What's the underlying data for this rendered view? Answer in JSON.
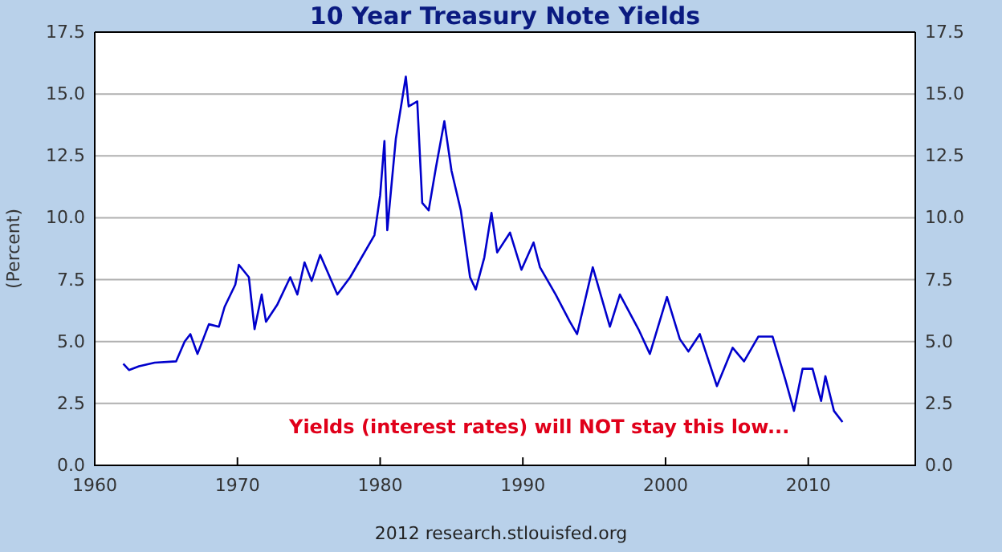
{
  "chart_data": {
    "type": "line",
    "title": "10 Year Treasury Note Yields",
    "ylabel": "(Percent)",
    "x": [
      1962.0,
      1962.4,
      1963.1,
      1964.2,
      1965.7,
      1966.3,
      1966.7,
      1967.2,
      1968.0,
      1968.7,
      1969.1,
      1969.85,
      1970.1,
      1970.8,
      1971.2,
      1971.7,
      1972.0,
      1972.8,
      1973.7,
      1974.2,
      1974.7,
      1975.2,
      1975.8,
      1977.0,
      1977.9,
      1979.6,
      1980.0,
      1980.3,
      1980.5,
      1981.1,
      1981.8,
      1982.0,
      1982.6,
      1982.95,
      1983.4,
      1983.9,
      1984.5,
      1985.0,
      1985.65,
      1986.3,
      1986.7,
      1987.3,
      1987.8,
      1988.2,
      1989.1,
      1989.9,
      1990.75,
      1991.2,
      1992.3,
      1993.3,
      1993.8,
      1994.9,
      1996.1,
      1996.8,
      1998.1,
      1998.9,
      2000.1,
      2001.0,
      2001.6,
      2002.4,
      2003.6,
      2004.7,
      2005.5,
      2006.5,
      2007.5,
      2008.4,
      2009.0,
      2009.6,
      2010.3,
      2010.9,
      2011.2,
      2011.8,
      2012.4
    ],
    "series": [
      {
        "color": "#0000cc",
        "values": [
          4.1,
          3.85,
          4.0,
          4.15,
          4.2,
          5.0,
          5.3,
          4.5,
          5.7,
          5.6,
          6.4,
          7.3,
          8.1,
          7.6,
          5.5,
          6.9,
          5.8,
          6.5,
          7.6,
          6.9,
          8.2,
          7.45,
          8.5,
          6.9,
          7.6,
          9.3,
          10.9,
          13.1,
          9.5,
          13.2,
          15.7,
          14.5,
          14.7,
          10.6,
          10.3,
          12.0,
          13.9,
          11.9,
          10.3,
          7.6,
          7.1,
          8.4,
          10.2,
          8.6,
          9.4,
          7.9,
          9.0,
          8.0,
          6.9,
          5.8,
          5.3,
          8.0,
          5.6,
          6.9,
          5.5,
          4.5,
          6.8,
          5.1,
          4.6,
          5.3,
          3.2,
          4.75,
          4.2,
          5.2,
          5.2,
          3.45,
          2.2,
          3.9,
          3.9,
          2.6,
          3.6,
          2.2,
          1.75
        ]
      }
    ],
    "xlim": [
      1960,
      2017.5
    ],
    "xticks": [
      1960,
      1970,
      1980,
      1990,
      2000,
      2010
    ],
    "ylim": [
      0,
      17.5
    ],
    "yticks": [
      {
        "value": 0,
        "label": "0.0"
      },
      {
        "value": 2.5,
        "label": "2.5"
      },
      {
        "value": 5,
        "label": "5.0"
      },
      {
        "value": 7.5,
        "label": "7.5"
      },
      {
        "value": 10,
        "label": "10.0"
      },
      {
        "value": 12.5,
        "label": "12.5"
      },
      {
        "value": 15,
        "label": "15.0"
      },
      {
        "value": 17.5,
        "label": "17.5"
      }
    ],
    "y2lim": [
      0,
      17.5
    ],
    "y2ticks": [
      {
        "value": 0,
        "label": "0.0"
      },
      {
        "value": 2.5,
        "label": "2.5"
      },
      {
        "value": 5,
        "label": "5.0"
      },
      {
        "value": 7.5,
        "label": "7.5"
      },
      {
        "value": 10,
        "label": "10.0"
      },
      {
        "value": 12.5,
        "label": "12.5"
      },
      {
        "value": 15,
        "label": "15.0"
      },
      {
        "value": 17.5,
        "label": "17.5"
      }
    ],
    "grid": "y",
    "annotations": [
      "Yields (interest rates) will NOT stay this low...",
      "2012 research.stlouisfed.org"
    ]
  }
}
